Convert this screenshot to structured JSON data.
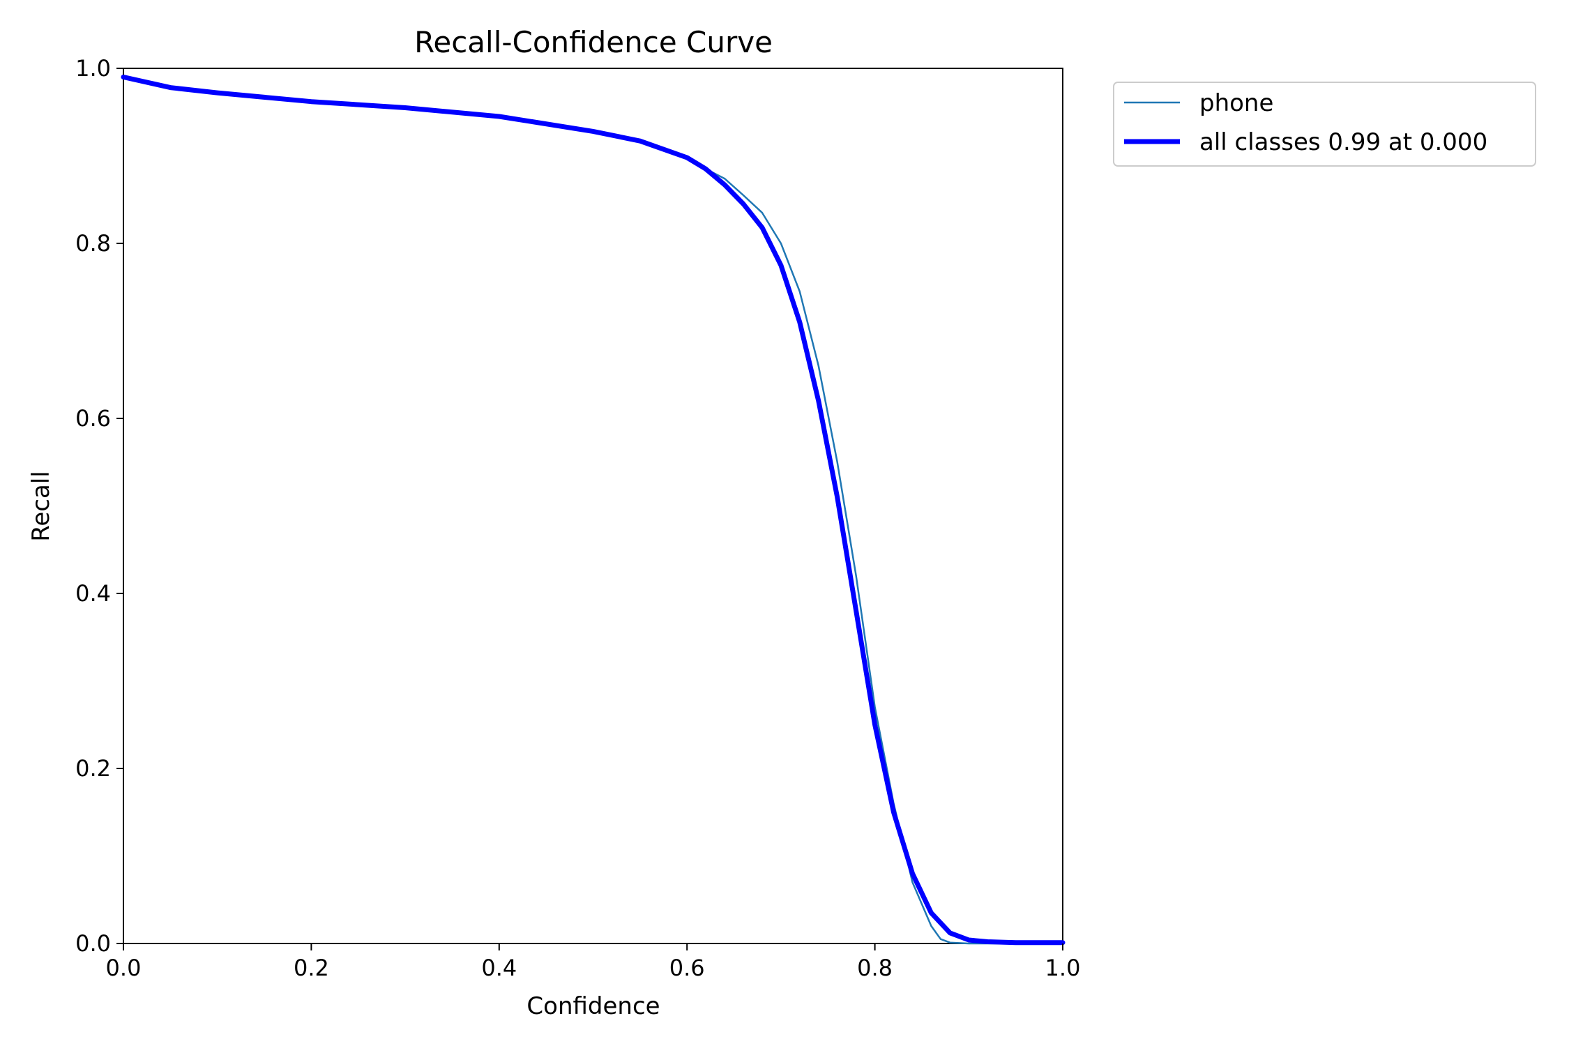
{
  "chart_data": {
    "type": "line",
    "title": "Recall-Confidence Curve",
    "xlabel": "Confidence",
    "ylabel": "Recall",
    "xlim": [
      0,
      1
    ],
    "ylim": [
      0,
      1
    ],
    "grid": false,
    "legend_placement": "outside-top-right",
    "x_ticks": [
      "0.0",
      "0.2",
      "0.4",
      "0.6",
      "0.8",
      "1.0"
    ],
    "y_ticks": [
      "0.0",
      "0.2",
      "0.4",
      "0.6",
      "0.8",
      "1.0"
    ],
    "series": [
      {
        "name": "phone",
        "color": "#1f77b4",
        "x": [
          0.0,
          0.05,
          0.1,
          0.2,
          0.3,
          0.4,
          0.5,
          0.55,
          0.6,
          0.62,
          0.64,
          0.66,
          0.68,
          0.7,
          0.72,
          0.74,
          0.76,
          0.78,
          0.8,
          0.82,
          0.84,
          0.86,
          0.87,
          0.88,
          0.9,
          0.95,
          1.0
        ],
        "y": [
          0.99,
          0.978,
          0.972,
          0.962,
          0.955,
          0.945,
          0.928,
          0.917,
          0.898,
          0.885,
          0.874,
          0.855,
          0.835,
          0.8,
          0.745,
          0.66,
          0.55,
          0.42,
          0.27,
          0.16,
          0.07,
          0.02,
          0.005,
          0.001,
          0.0,
          0.0,
          0.0
        ]
      },
      {
        "name": "all classes 0.99 at 0.000",
        "color": "#0000ff",
        "x": [
          0.0,
          0.05,
          0.1,
          0.2,
          0.3,
          0.4,
          0.5,
          0.55,
          0.6,
          0.62,
          0.64,
          0.66,
          0.68,
          0.7,
          0.72,
          0.74,
          0.76,
          0.78,
          0.8,
          0.82,
          0.84,
          0.86,
          0.88,
          0.9,
          0.92,
          0.95,
          1.0
        ],
        "y": [
          0.99,
          0.978,
          0.972,
          0.962,
          0.955,
          0.945,
          0.928,
          0.917,
          0.898,
          0.885,
          0.867,
          0.845,
          0.818,
          0.775,
          0.71,
          0.62,
          0.51,
          0.38,
          0.25,
          0.15,
          0.08,
          0.035,
          0.012,
          0.004,
          0.002,
          0.001,
          0.001
        ]
      }
    ]
  }
}
